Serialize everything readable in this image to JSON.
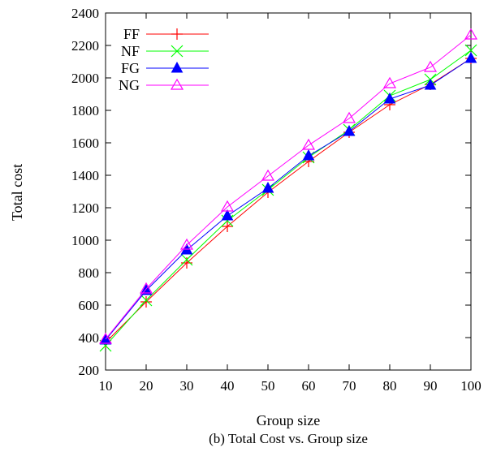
{
  "chart_data": {
    "type": "line",
    "caption": "(b) Total Cost vs. Group size",
    "xlabel": "Group size",
    "ylabel": "Total cost",
    "x": [
      10,
      20,
      30,
      40,
      50,
      60,
      70,
      80,
      90,
      100
    ],
    "xlim": [
      10,
      100
    ],
    "ylim": [
      200,
      2400
    ],
    "yticks": [
      200,
      400,
      600,
      800,
      1000,
      1200,
      1400,
      1600,
      1800,
      2000,
      2200,
      2400
    ],
    "legend_position": "top-left",
    "grid": false,
    "series": [
      {
        "name": "FF",
        "color": "#ff0000",
        "marker": "plus",
        "values": [
          370,
          620,
          860,
          1085,
          1295,
          1485,
          1665,
          1835,
          1960,
          2120
        ]
      },
      {
        "name": "NF",
        "color": "#00ff00",
        "marker": "cross",
        "values": [
          350,
          630,
          880,
          1120,
          1310,
          1510,
          1680,
          1890,
          1990,
          2170
        ]
      },
      {
        "name": "FG",
        "color": "#0000ff",
        "marker": "filled-triangle",
        "values": [
          385,
          690,
          940,
          1150,
          1320,
          1520,
          1670,
          1870,
          1955,
          2120
        ]
      },
      {
        "name": "NG",
        "color": "#ff00ff",
        "marker": "open-triangle",
        "values": [
          390,
          700,
          970,
          1205,
          1395,
          1585,
          1750,
          1965,
          2065,
          2265
        ]
      }
    ]
  }
}
